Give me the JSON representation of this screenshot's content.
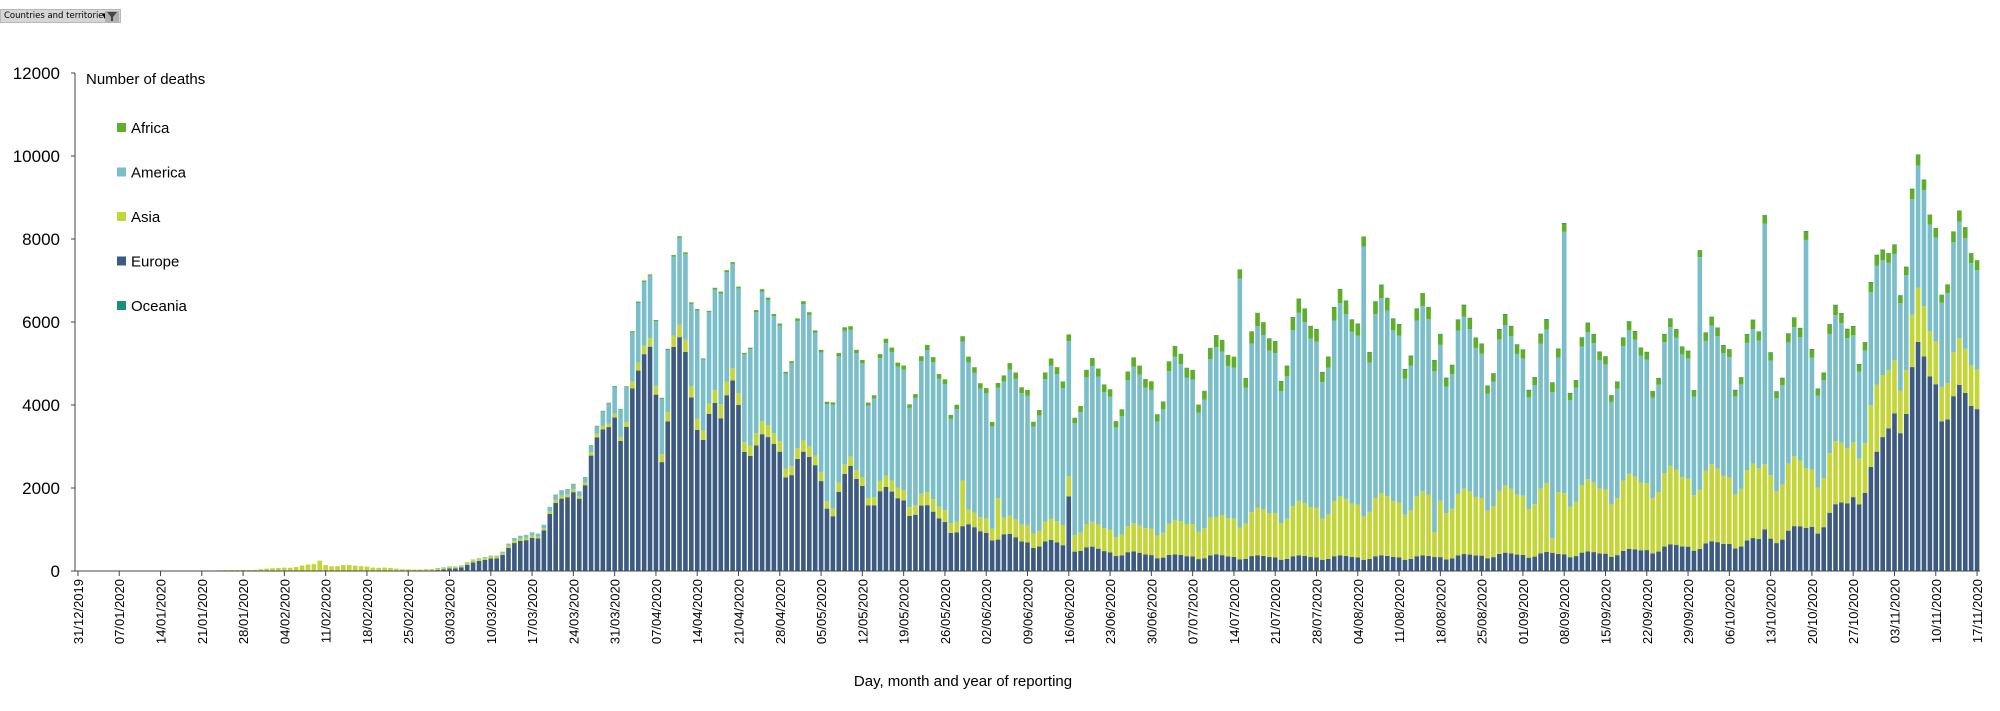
{
  "filter": {
    "label": "Countries and territories"
  },
  "chart_data": {
    "type": "bar",
    "stacked": true,
    "title": "",
    "ylabel": "Number of deaths",
    "xlabel": "Day, month and year of reporting",
    "ylim": [
      0,
      12000
    ],
    "yticks": [
      "0",
      "2000",
      "4000",
      "6000",
      "8000",
      "10000",
      "12000"
    ],
    "x_start": "31/12/2019",
    "x_end": "17/11/2020",
    "x_interval_days": 7,
    "x_ticks": [
      "31/12/2019",
      "07/01/2020",
      "14/01/2020",
      "21/01/2020",
      "28/01/2020",
      "04/02/2020",
      "11/02/2020",
      "18/02/2020",
      "25/02/2020",
      "03/03/2020",
      "10/03/2020",
      "17/03/2020",
      "24/03/2020",
      "31/03/2020",
      "07/04/2020",
      "14/04/2020",
      "21/04/2020",
      "28/04/2020",
      "05/05/2020",
      "12/05/2020",
      "19/05/2020",
      "26/05/2020",
      "02/06/2020",
      "09/06/2020",
      "16/06/2020",
      "23/06/2020",
      "30/06/2020",
      "07/07/2020",
      "14/07/2020",
      "21/07/2020",
      "28/07/2020",
      "04/08/2020",
      "11/08/2020",
      "18/08/2020",
      "25/08/2020",
      "01/09/2020",
      "08/09/2020",
      "15/09/2020",
      "22/09/2020",
      "29/09/2020",
      "06/10/2020",
      "13/10/2020",
      "20/10/2020",
      "27/10/2020",
      "03/11/2020",
      "10/11/2020",
      "17/11/2020"
    ],
    "legend": {
      "placement": "top-left"
    },
    "legend_entries": [
      {
        "name": "Africa",
        "color": "#5fae28"
      },
      {
        "name": "America",
        "color": "#7abec9"
      },
      {
        "name": "Asia",
        "color": "#c3d637"
      },
      {
        "name": "Europe",
        "color": "#3d5a80"
      },
      {
        "name": "Oceania",
        "color": "#1a8f7a"
      }
    ],
    "series": [
      {
        "name": "Europe",
        "color": "#3d5a80",
        "anchors": [
          [
            0,
            0
          ],
          [
            40,
            0
          ],
          [
            60,
            0
          ],
          [
            65,
            100
          ],
          [
            70,
            300
          ],
          [
            77,
            800
          ],
          [
            84,
            1900
          ],
          [
            88,
            2800
          ],
          [
            91,
            3700
          ],
          [
            95,
            4200
          ],
          [
            97,
            5300
          ],
          [
            99,
            3200
          ],
          [
            101,
            5000
          ],
          [
            103,
            4800
          ],
          [
            105,
            3400
          ],
          [
            107,
            4300
          ],
          [
            109,
            3200
          ],
          [
            111,
            4500
          ],
          [
            113,
            3500
          ],
          [
            115,
            2800
          ],
          [
            118,
            3000
          ],
          [
            122,
            2500
          ],
          [
            125,
            2500
          ],
          [
            128,
            1500
          ],
          [
            131,
            2300
          ],
          [
            135,
            1800
          ],
          [
            140,
            1700
          ],
          [
            145,
            1300
          ],
          [
            150,
            1000
          ],
          [
            155,
            900
          ],
          [
            160,
            700
          ],
          [
            165,
            650
          ],
          [
            170,
            550
          ],
          [
            175,
            450
          ],
          [
            180,
            400
          ],
          [
            186,
            350
          ],
          [
            193,
            350
          ],
          [
            200,
            330
          ],
          [
            210,
            330
          ],
          [
            220,
            330
          ],
          [
            230,
            330
          ],
          [
            240,
            380
          ],
          [
            250,
            400
          ],
          [
            260,
            420
          ],
          [
            270,
            560
          ],
          [
            280,
            650
          ],
          [
            285,
            700
          ],
          [
            290,
            900
          ],
          [
            295,
            1100
          ],
          [
            300,
            1600
          ],
          [
            305,
            2500
          ],
          [
            308,
            3800
          ],
          [
            312,
            4800
          ],
          [
            316,
            4400
          ],
          [
            318,
            3900
          ],
          [
            322,
            3900
          ]
        ],
        "spikes": [
          [
            168,
            1800
          ],
          [
            286,
            1000
          ]
        ]
      },
      {
        "name": "Asia",
        "color": "#c3d637",
        "anchors": [
          [
            0,
            0
          ],
          [
            20,
            5
          ],
          [
            30,
            30
          ],
          [
            35,
            80
          ],
          [
            40,
            150
          ],
          [
            45,
            130
          ],
          [
            50,
            100
          ],
          [
            55,
            40
          ],
          [
            60,
            40
          ],
          [
            70,
            50
          ],
          [
            80,
            60
          ],
          [
            90,
            80
          ],
          [
            100,
            250
          ],
          [
            110,
            300
          ],
          [
            120,
            250
          ],
          [
            130,
            200
          ],
          [
            140,
            250
          ],
          [
            150,
            300
          ],
          [
            160,
            400
          ],
          [
            170,
            500
          ],
          [
            180,
            600
          ],
          [
            190,
            800
          ],
          [
            200,
            1000
          ],
          [
            210,
            1200
          ],
          [
            220,
            1300
          ],
          [
            230,
            1350
          ],
          [
            240,
            1400
          ],
          [
            250,
            1450
          ],
          [
            260,
            1550
          ],
          [
            270,
            1650
          ],
          [
            280,
            1600
          ],
          [
            290,
            1500
          ],
          [
            295,
            1350
          ],
          [
            300,
            1300
          ],
          [
            305,
            1400
          ],
          [
            310,
            1200
          ],
          [
            316,
            1000
          ],
          [
            322,
            950
          ]
        ],
        "spikes": [
          [
            41,
            250
          ],
          [
            150,
            1100
          ],
          [
            156,
            1000
          ],
          [
            193,
            900
          ],
          [
            230,
            600
          ],
          [
            250,
            350
          ],
          [
            307,
            1400
          ]
        ]
      },
      {
        "name": "America",
        "color": "#7abec9",
        "anchors": [
          [
            0,
            0
          ],
          [
            60,
            0
          ],
          [
            70,
            20
          ],
          [
            80,
            100
          ],
          [
            88,
            150
          ],
          [
            92,
            800
          ],
          [
            96,
            1400
          ],
          [
            100,
            1700
          ],
          [
            105,
            2000
          ],
          [
            110,
            2400
          ],
          [
            115,
            2700
          ],
          [
            120,
            2800
          ],
          [
            125,
            2900
          ],
          [
            130,
            2800
          ],
          [
            135,
            2700
          ],
          [
            140,
            2900
          ],
          [
            145,
            3000
          ],
          [
            150,
            3100
          ],
          [
            155,
            3000
          ],
          [
            160,
            3100
          ],
          [
            165,
            3200
          ],
          [
            170,
            3300
          ],
          [
            175,
            3200
          ],
          [
            180,
            3300
          ],
          [
            185,
            3400
          ],
          [
            190,
            3500
          ],
          [
            195,
            3600
          ],
          [
            200,
            3800
          ],
          [
            205,
            3900
          ],
          [
            210,
            4000
          ],
          [
            215,
            4050
          ],
          [
            220,
            4100
          ],
          [
            225,
            4000
          ],
          [
            230,
            3800
          ],
          [
            235,
            3600
          ],
          [
            240,
            3400
          ],
          [
            245,
            3300
          ],
          [
            250,
            3200
          ],
          [
            255,
            3100
          ],
          [
            260,
            3000
          ],
          [
            265,
            3000
          ],
          [
            270,
            2900
          ],
          [
            275,
            2900
          ],
          [
            280,
            2900
          ],
          [
            285,
            2800
          ],
          [
            290,
            2700
          ],
          [
            295,
            2700
          ],
          [
            300,
            2600
          ],
          [
            305,
            2500
          ],
          [
            310,
            2600
          ],
          [
            315,
            2500
          ],
          [
            322,
            2400
          ]
        ],
        "spikes": [
          [
            105,
            2600
          ],
          [
            107,
            2200
          ],
          [
            197,
            6000
          ],
          [
            218,
            6500
          ],
          [
            252,
            6300
          ],
          [
            275,
            5600
          ],
          [
            286,
            5800
          ],
          [
            293,
            5500
          ]
        ]
      },
      {
        "name": "Africa",
        "color": "#5fae28",
        "anchors": [
          [
            0,
            0
          ],
          [
            80,
            0
          ],
          [
            95,
            30
          ],
          [
            110,
            40
          ],
          [
            125,
            60
          ],
          [
            140,
            100
          ],
          [
            150,
            120
          ],
          [
            160,
            140
          ],
          [
            175,
            180
          ],
          [
            190,
            240
          ],
          [
            200,
            280
          ],
          [
            210,
            300
          ],
          [
            220,
            280
          ],
          [
            230,
            260
          ],
          [
            240,
            230
          ],
          [
            250,
            210
          ],
          [
            260,
            190
          ],
          [
            270,
            180
          ],
          [
            280,
            190
          ],
          [
            290,
            200
          ],
          [
            300,
            220
          ],
          [
            310,
            230
          ],
          [
            322,
            240
          ]
        ]
      },
      {
        "name": "Oceania",
        "color": "#1a8f7a",
        "anchors": [
          [
            0,
            0
          ],
          [
            200,
            0
          ],
          [
            215,
            5
          ],
          [
            225,
            10
          ],
          [
            235,
            5
          ],
          [
            322,
            0
          ]
        ]
      }
    ],
    "weekly_wave": [
      1.0,
      0.82,
      0.88,
      1.08,
      1.15,
      1.1,
      1.02
    ],
    "num_days": 323
  }
}
